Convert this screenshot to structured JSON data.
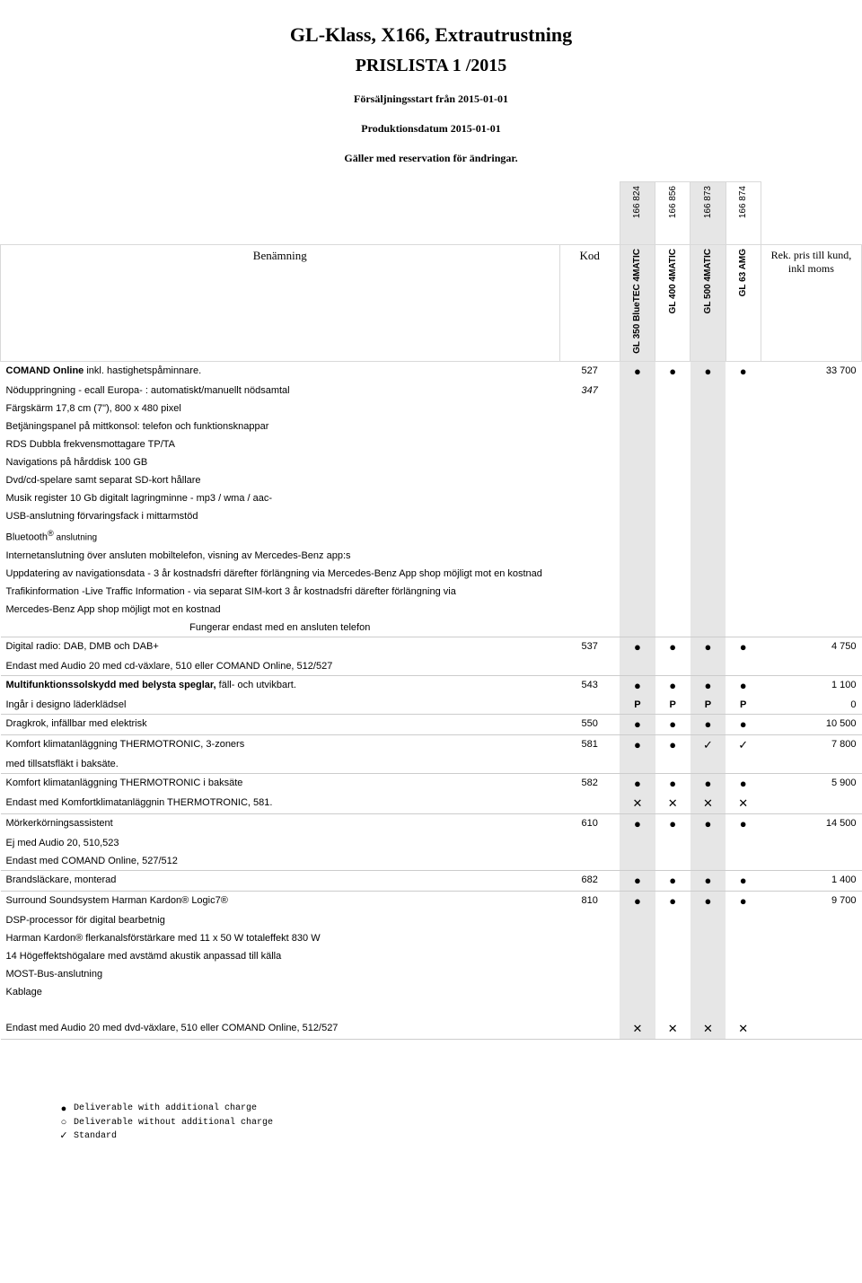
{
  "header": {
    "title": "GL-Klass, X166, Extrautrustning",
    "subtitle": "PRISLISTA 1 /2015",
    "line1": "Försäljningsstart från 2015-01-01",
    "line2": "Produktionsdatum 2015-01-01",
    "line3": "Gäller med reservation för ändringar."
  },
  "columns": {
    "name_header": "Benämning",
    "kod_header": "Kod",
    "price_header": "Rek. pris till kund, inkl moms",
    "model_codes": [
      "166 824",
      "166 856",
      "166 873",
      "166 874"
    ],
    "model_names": [
      "GL 350 BlueTEC 4MATIC",
      "GL 400 4MATIC",
      "GL 500 4MATIC",
      "GL 63 AMG"
    ],
    "shaded_cols": [
      true,
      false,
      true,
      false
    ]
  },
  "symbols": {
    "dot": "●",
    "circle": "○",
    "check": "✓",
    "cross": "✕",
    "p": "P"
  },
  "rows": [
    {
      "type": "main",
      "name": "COMAND Online inkl. hastighetspåminnare.",
      "name_bold_prefix": "COMAND Online",
      "kod": "527",
      "marks": [
        "dot",
        "dot",
        "dot",
        "dot"
      ],
      "price": "33 700"
    },
    {
      "type": "sub",
      "name": "Nöduppringning - ecall Europa- : automatiskt/manuellt nödsamtal",
      "kod": "347",
      "kod_italic": true
    },
    {
      "type": "sub",
      "name": "Färgskärm 17,8 cm (7\"), 800 x 480 pixel"
    },
    {
      "type": "sub",
      "name": "Betjäningspanel på mittkonsol: telefon och funktionsknappar"
    },
    {
      "type": "sub",
      "name": "RDS Dubbla frekvensmottagare TP/TA"
    },
    {
      "type": "sub",
      "name": "Navigations på hårddisk 100 GB"
    },
    {
      "type": "sub",
      "name": "Dvd/cd-spelare samt separat SD-kort hållare"
    },
    {
      "type": "sub",
      "name": "Musik register 10 Gb digitalt lagringminne - mp3 / wma / aac-"
    },
    {
      "type": "sub",
      "name": "USB-anslutning förvaringsfack i mittarmstöd"
    },
    {
      "type": "sub_bt",
      "pre": "Bluetooth",
      "post": " anslutning"
    },
    {
      "type": "sub",
      "name": "Internetanslutning över ansluten mobiltelefon, visning av Mercedes-Benz app:s"
    },
    {
      "type": "sub",
      "name": "Uppdatering av navigationsdata - 3 år kostnadsfri därefter förlängning via Mercedes-Benz App shop möjligt mot en kostnad"
    },
    {
      "type": "sub",
      "name": "Trafikinformation -Live Traffic Information - via separat SIM-kort  3 år kostnadsfri därefter förlängning via"
    },
    {
      "type": "sub",
      "name": "Mercedes-Benz App shop möjligt mot en kostnad"
    },
    {
      "type": "note",
      "name": "Fungerar endast med en ansluten telefon",
      "sep": true
    },
    {
      "type": "main",
      "name": "Digital radio: DAB, DMB och DAB+",
      "bold_all": true,
      "kod": "537",
      "marks": [
        "dot",
        "dot",
        "dot",
        "dot"
      ],
      "price": "4 750"
    },
    {
      "type": "sub",
      "name": "Endast med Audio 20 med cd-växlare, 510 eller COMAND Online, 512/527",
      "sep": true
    },
    {
      "type": "main",
      "name": "Multifunktionssolskydd med belysta speglar, fäll- och utvikbart.",
      "name_bold_prefix": "Multifunktionssolskydd med belysta speglar,",
      "kod": "543",
      "marks": [
        "dot",
        "dot",
        "dot",
        "dot"
      ],
      "price": "1 100"
    },
    {
      "type": "sub",
      "name": "Ingår i designo läderklädsel",
      "marks": [
        "p",
        "p",
        "p",
        "p"
      ],
      "price": "0",
      "sep": true
    },
    {
      "type": "main",
      "name": "Dragkrok, infällbar med elektrisk",
      "bold_all": true,
      "kod": "550",
      "marks": [
        "dot",
        "dot",
        "dot",
        "dot"
      ],
      "price": "10 500",
      "sep": true
    },
    {
      "type": "main",
      "name": "Komfort klimatanläggning THERMOTRONIC, 3-zoners",
      "bold_all": true,
      "kod": "581",
      "marks": [
        "dot",
        "dot",
        "check",
        "check"
      ],
      "price": "7 800"
    },
    {
      "type": "sub",
      "name": "med tillsatsfläkt i baksäte.",
      "sep": true
    },
    {
      "type": "main",
      "name": "Komfort klimatanläggning THERMOTRONIC i baksäte",
      "bold_all": true,
      "kod": "582",
      "marks": [
        "dot",
        "dot",
        "dot",
        "dot"
      ],
      "price": "5 900"
    },
    {
      "type": "sub",
      "name": "Endast med Komfortklimatanläggnin THERMOTRONIC, 581.",
      "marks": [
        "cross",
        "cross",
        "cross",
        "cross"
      ],
      "sep": true
    },
    {
      "type": "main",
      "name": "Mörkerkörningsassistent",
      "bold_all": true,
      "kod": "610",
      "marks": [
        "dot",
        "dot",
        "dot",
        "dot"
      ],
      "price": "14 500"
    },
    {
      "type": "sub",
      "name": "Ej med Audio 20, 510,523"
    },
    {
      "type": "sub",
      "name": "Endast med COMAND Online, 527/512",
      "sep": true
    },
    {
      "type": "main",
      "name": "Brandsläckare, monterad",
      "bold_all": true,
      "kod": "682",
      "marks": [
        "dot",
        "dot",
        "dot",
        "dot"
      ],
      "price": "1 400",
      "sep": true
    },
    {
      "type": "main",
      "name": "Surround Soundsystem Harman Kardon® Logic7®",
      "bold_all": true,
      "kod": "810",
      "marks": [
        "dot",
        "dot",
        "dot",
        "dot"
      ],
      "price": "9 700"
    },
    {
      "type": "sub",
      "name": "DSP-processor för digital bearbetnig"
    },
    {
      "type": "sub",
      "name": "Harman Kardon® flerkanalsförstärkare med 11 x 50 W totaleffekt 830 W"
    },
    {
      "type": "sub",
      "name": "14 Högeffektshögalare med avstämd akustik anpassad till källa"
    },
    {
      "type": "sub",
      "name": "MOST-Bus-anslutning"
    },
    {
      "type": "sub",
      "name": "Kablage"
    },
    {
      "type": "spacer"
    },
    {
      "type": "sub",
      "name": "Endast med Audio 20 med dvd-växlare, 510 eller COMAND Online, 512/527",
      "marks": [
        "cross",
        "cross",
        "cross",
        "cross"
      ],
      "sep": true
    }
  ],
  "legend": {
    "items": [
      {
        "sym": "●",
        "text": "Deliverable with additional charge"
      },
      {
        "sym": "○",
        "text": "Deliverable without additional charge"
      },
      {
        "sym": "✓",
        "text": "Standard"
      }
    ]
  }
}
